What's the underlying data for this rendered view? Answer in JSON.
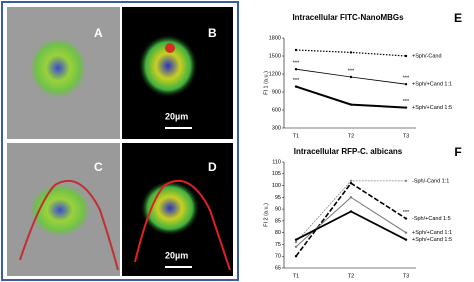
{
  "images": {
    "labels": [
      "A",
      "B",
      "C",
      "D"
    ],
    "scale": [
      "20µm",
      "20µm"
    ]
  },
  "chart_data": [
    {
      "type": "line",
      "panel": "E",
      "title": "Intracellular FITC-NanoMBGs",
      "y_label": "FI 1 (a.u.)",
      "categories": [
        "T1",
        "T2",
        "T3"
      ],
      "ylim": [
        300,
        1800
      ],
      "yticks": [
        300,
        600,
        900,
        1200,
        1500,
        1800
      ],
      "series": [
        {
          "name": "+Sph/-Cand",
          "color": "#000000",
          "dash": "1.5,1.5",
          "width": 1.2,
          "values": [
            1600,
            1560,
            1500
          ]
        },
        {
          "name": "+Sph/+Cand 1:1",
          "color": "#000000",
          "dash": "",
          "width": 0.8,
          "values": [
            1280,
            1150,
            1030
          ]
        },
        {
          "name": "+Sph/+Cand 1:5",
          "color": "#000000",
          "dash": "",
          "width": 2,
          "values": [
            990,
            690,
            640
          ]
        }
      ],
      "annotations": [
        "***",
        "***",
        "***",
        "***",
        "***"
      ]
    },
    {
      "type": "line",
      "panel": "F",
      "title": "Intracellular RFP-C. albicans",
      "y_label": "FI 2 (a.u.)",
      "categories": [
        "T1",
        "T2",
        "T3"
      ],
      "ylim": [
        65,
        110
      ],
      "yticks": [
        65,
        70,
        75,
        80,
        85,
        90,
        95,
        100,
        105,
        110
      ],
      "series": [
        {
          "name": "-Sph/-Cand 1:1",
          "color": "#888888",
          "dash": "2,1",
          "width": 0.8,
          "values": [
            76,
            102,
            102
          ]
        },
        {
          "name": "-Sph/+Cand 1:5",
          "color": "#000000",
          "dash": "5,2",
          "width": 1.6,
          "values": [
            70,
            101,
            86
          ]
        },
        {
          "name": "+Sph/+Cand 1:1",
          "color": "#777777",
          "dash": "",
          "width": 1,
          "values": [
            74,
            95,
            80
          ]
        },
        {
          "name": "+Sph/+Cand 1:5",
          "color": "#000000",
          "dash": "",
          "width": 1.8,
          "values": [
            77,
            89,
            77
          ]
        }
      ],
      "annotations": [
        "***"
      ]
    }
  ]
}
